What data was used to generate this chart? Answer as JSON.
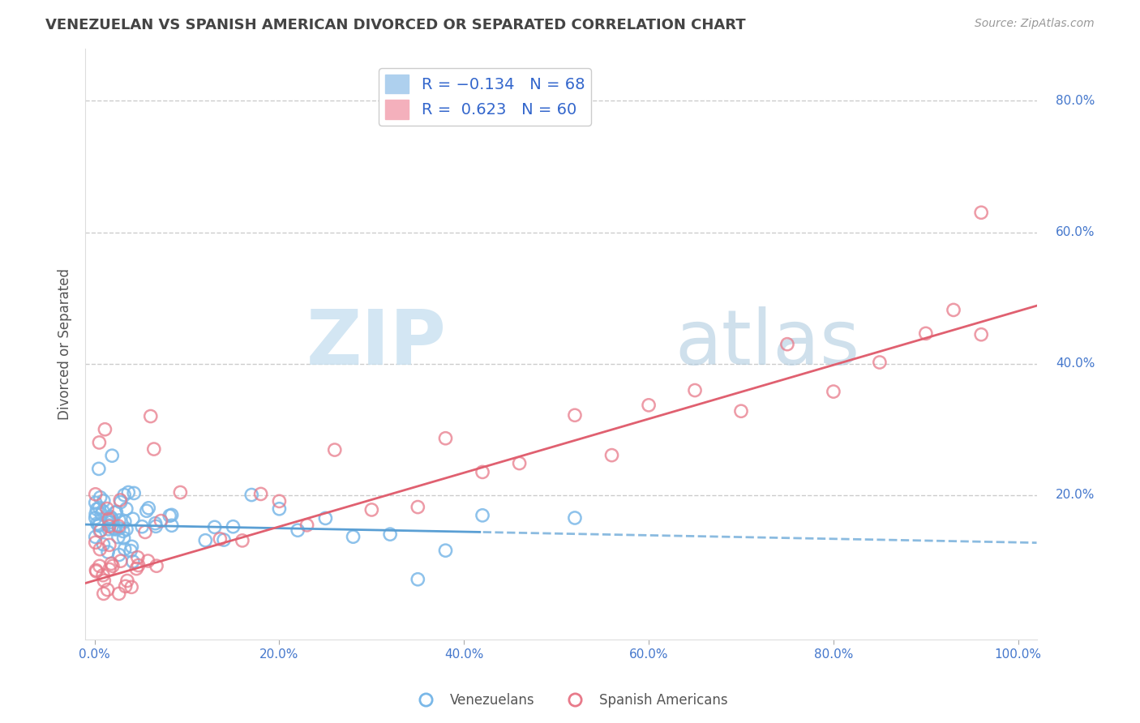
{
  "title": "VENEZUELAN VS SPANISH AMERICAN DIVORCED OR SEPARATED CORRELATION CHART",
  "source_text": "Source: ZipAtlas.com",
  "ylabel": "Divorced or Separated",
  "watermark": "ZIPatlas",
  "xlim": [
    -0.01,
    1.02
  ],
  "ylim": [
    -0.02,
    0.88
  ],
  "xticks": [
    0.0,
    0.2,
    0.4,
    0.6,
    0.8,
    1.0
  ],
  "yticks": [
    0.2,
    0.4,
    0.6,
    0.8
  ],
  "xtick_labels": [
    "0.0%",
    "20.0%",
    "40.0%",
    "60.0%",
    "80.0%",
    "100.0%"
  ],
  "ytick_labels": [
    "20.0%",
    "40.0%",
    "60.0%",
    "80.0%"
  ],
  "legend_labels": [
    "Venezuelans",
    "Spanish Americans"
  ],
  "venezuelan_color": "#7ab8e8",
  "spanish_color": "#e87a8a",
  "venezuelan_line_color": "#5a9fd4",
  "spanish_line_color": "#e06070",
  "R_venezuelan": -0.134,
  "N_venezuelan": 68,
  "R_spanish": 0.623,
  "N_spanish": 60,
  "grid_color": "#cccccc",
  "background_color": "#ffffff",
  "title_color": "#444444",
  "tick_color": "#4477cc",
  "ylabel_color": "#555555"
}
